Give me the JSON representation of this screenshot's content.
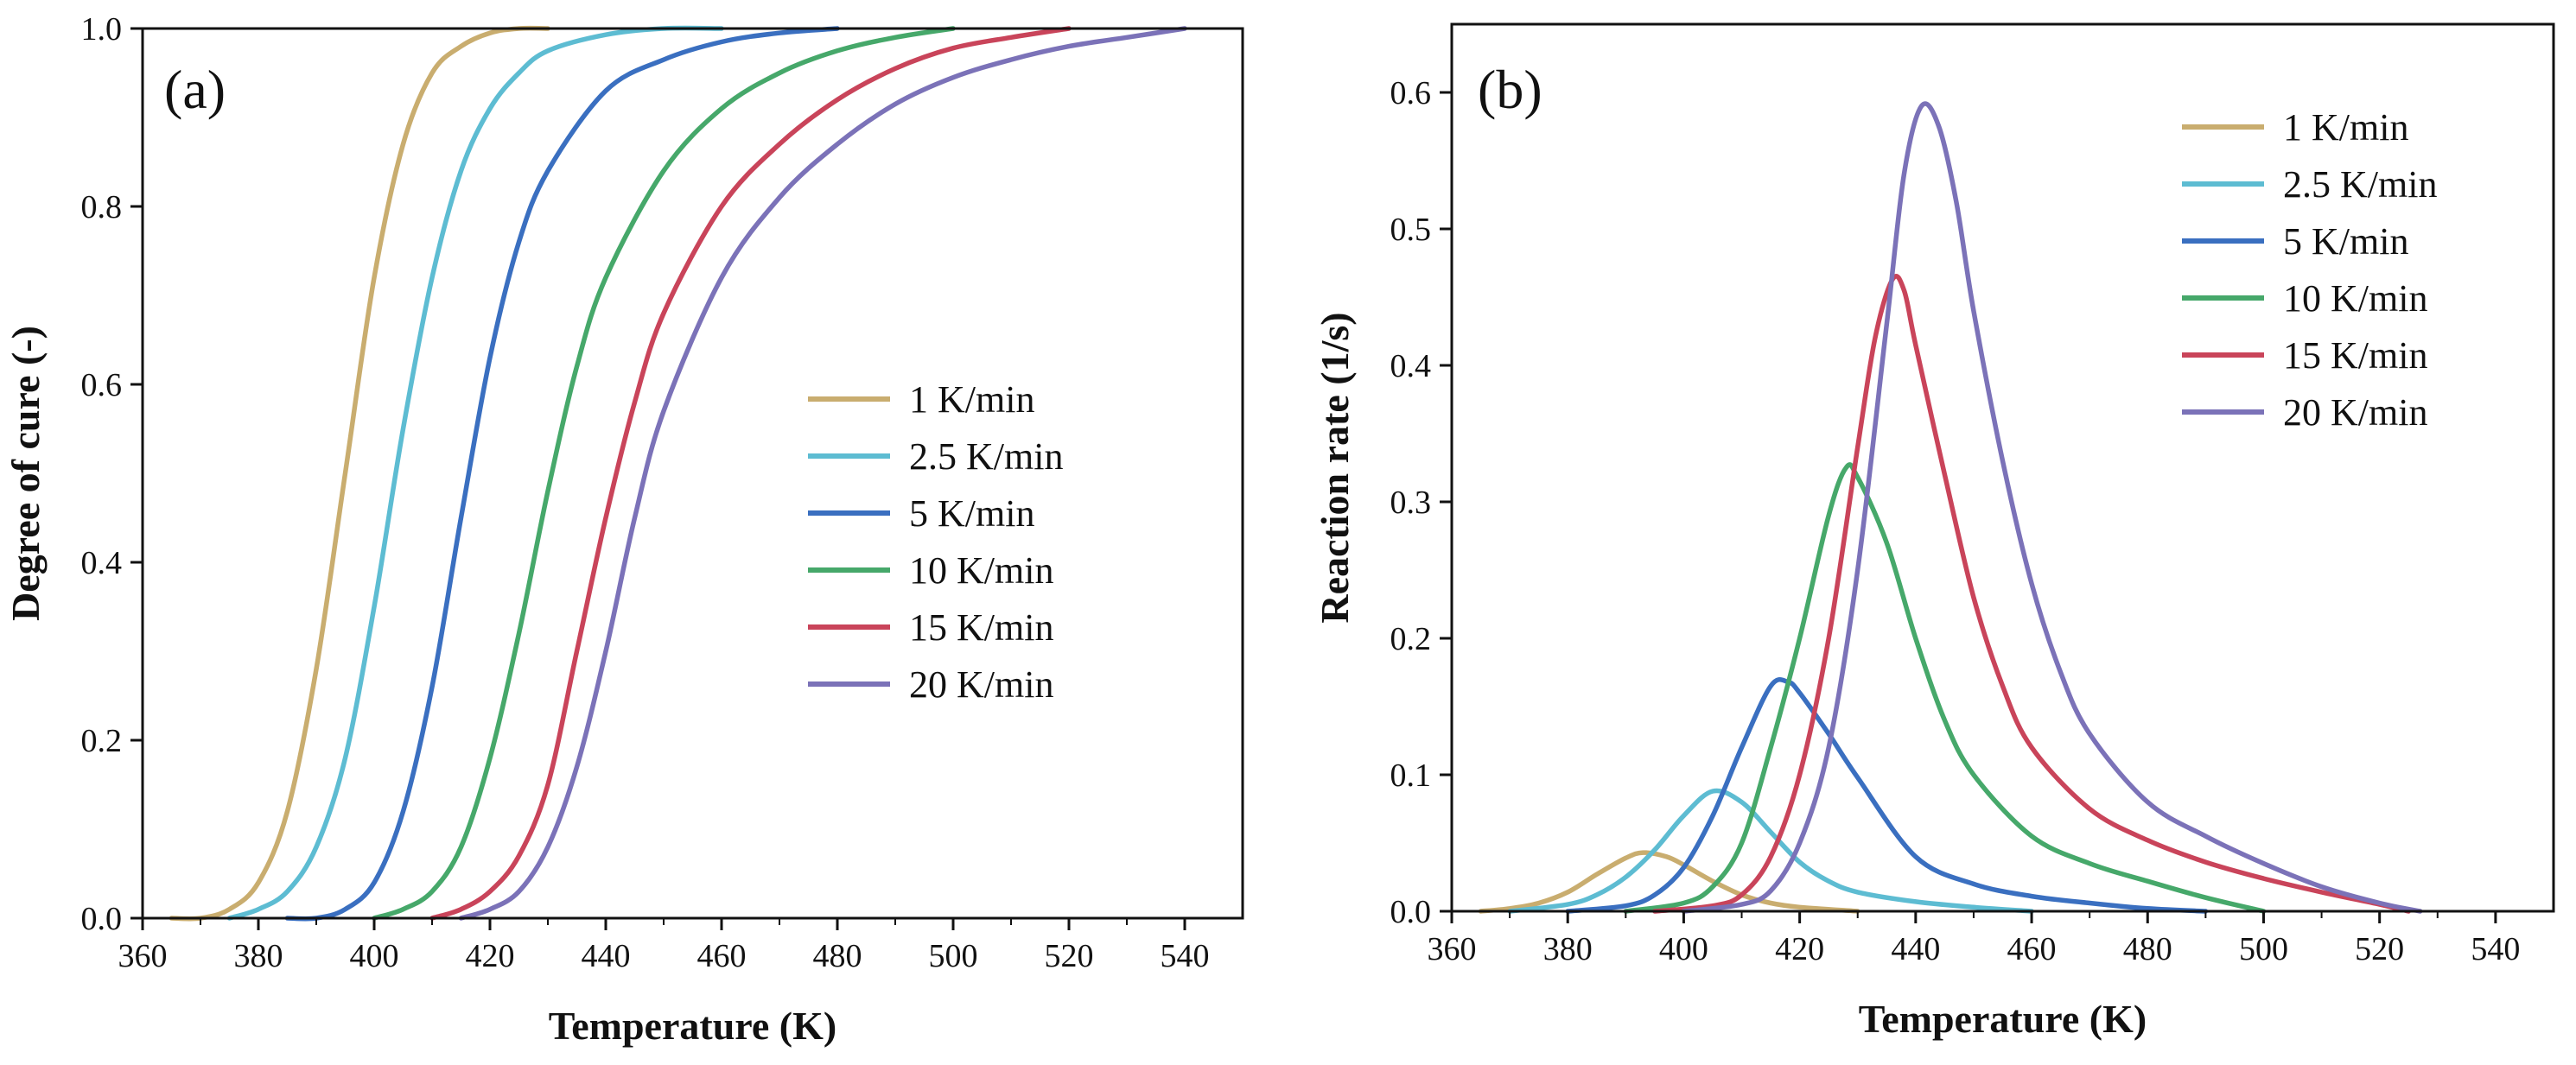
{
  "chart_data": [
    {
      "panel": "(a)",
      "type": "line",
      "xlabel": "Temperature (K)",
      "ylabel": "Degree of cure (-)",
      "xlim": [
        360,
        550
      ],
      "ylim": [
        0,
        1
      ],
      "xticks": [
        360,
        380,
        400,
        420,
        440,
        460,
        480,
        500,
        520,
        540
      ],
      "yticks": [
        0.0,
        0.2,
        0.4,
        0.6,
        0.8,
        1.0
      ],
      "ytick_labels": [
        "0.0",
        "0.2",
        "0.4",
        "0.6",
        "0.8",
        "1.0"
      ],
      "legend_position": "center-right",
      "series": [
        {
          "name": "1 K/min",
          "color": "#c9ad6f",
          "x": [
            365,
            370,
            375,
            380,
            385,
            390,
            395,
            400,
            405,
            410,
            415,
            420,
            425,
            430
          ],
          "y": [
            0.0,
            0.0,
            0.01,
            0.04,
            0.12,
            0.28,
            0.5,
            0.72,
            0.87,
            0.95,
            0.98,
            0.995,
            1.0,
            1.0
          ]
        },
        {
          "name": "2.5 K/min",
          "color": "#5dbcd2",
          "x": [
            375,
            380,
            385,
            390,
            395,
            400,
            405,
            410,
            415,
            420,
            425,
            430,
            440,
            450,
            460
          ],
          "y": [
            0.0,
            0.01,
            0.03,
            0.08,
            0.18,
            0.35,
            0.55,
            0.72,
            0.84,
            0.91,
            0.95,
            0.975,
            0.993,
            1.0,
            1.0
          ]
        },
        {
          "name": "5 K/min",
          "color": "#3a6fc0",
          "x": [
            385,
            390,
            395,
            400,
            405,
            410,
            415,
            420,
            425,
            430,
            440,
            450,
            460,
            470,
            480
          ],
          "y": [
            0.0,
            0.0,
            0.01,
            0.04,
            0.12,
            0.26,
            0.45,
            0.63,
            0.76,
            0.84,
            0.93,
            0.965,
            0.985,
            0.995,
            1.0
          ]
        },
        {
          "name": "10 K/min",
          "color": "#46a86a",
          "x": [
            400,
            405,
            410,
            415,
            420,
            425,
            430,
            435,
            440,
            450,
            460,
            470,
            480,
            490,
            500
          ],
          "y": [
            0.0,
            0.01,
            0.03,
            0.08,
            0.18,
            0.32,
            0.48,
            0.62,
            0.72,
            0.84,
            0.91,
            0.95,
            0.975,
            0.99,
            1.0
          ]
        },
        {
          "name": "15 K/min",
          "color": "#c9445a",
          "x": [
            410,
            415,
            420,
            425,
            430,
            435,
            440,
            445,
            450,
            460,
            470,
            480,
            490,
            500,
            510,
            520
          ],
          "y": [
            0.0,
            0.01,
            0.03,
            0.07,
            0.15,
            0.3,
            0.45,
            0.58,
            0.68,
            0.8,
            0.87,
            0.92,
            0.955,
            0.978,
            0.99,
            1.0
          ]
        },
        {
          "name": "20 K/min",
          "color": "#7b72b8",
          "x": [
            415,
            420,
            425,
            430,
            435,
            440,
            445,
            450,
            460,
            470,
            480,
            490,
            500,
            510,
            520,
            530,
            540
          ],
          "y": [
            0.0,
            0.01,
            0.03,
            0.08,
            0.17,
            0.3,
            0.45,
            0.57,
            0.72,
            0.81,
            0.87,
            0.915,
            0.945,
            0.965,
            0.98,
            0.99,
            1.0
          ]
        }
      ]
    },
    {
      "panel": "(b)",
      "type": "line",
      "xlabel": "Temperature (K)",
      "ylabel": "Reaction rate (1/s)",
      "xlim": [
        360,
        550
      ],
      "ylim": [
        0,
        0.65
      ],
      "xticks": [
        360,
        380,
        400,
        420,
        440,
        460,
        480,
        500,
        520,
        540
      ],
      "yticks": [
        0.0,
        0.1,
        0.2,
        0.3,
        0.4,
        0.5,
        0.6
      ],
      "ytick_labels": [
        "0.0",
        "0.1",
        "0.2",
        "0.3",
        "0.4",
        "0.5",
        "0.6"
      ],
      "legend_position": "top-right",
      "series": [
        {
          "name": "1 K/min",
          "color": "#c9ad6f",
          "x": [
            365,
            370,
            375,
            380,
            385,
            390,
            393,
            397,
            400,
            405,
            410,
            415,
            420,
            430
          ],
          "y": [
            0.0,
            0.002,
            0.006,
            0.014,
            0.027,
            0.039,
            0.043,
            0.04,
            0.034,
            0.022,
            0.012,
            0.006,
            0.003,
            0.0
          ]
        },
        {
          "name": "2.5 K/min",
          "color": "#5dbcd2",
          "x": [
            370,
            380,
            385,
            390,
            395,
            400,
            405,
            410,
            415,
            420,
            425,
            430,
            440,
            450,
            460
          ],
          "y": [
            0.0,
            0.005,
            0.012,
            0.025,
            0.045,
            0.07,
            0.088,
            0.08,
            0.058,
            0.036,
            0.022,
            0.014,
            0.007,
            0.003,
            0.0
          ]
        },
        {
          "name": "5 K/min",
          "color": "#3a6fc0",
          "x": [
            380,
            390,
            395,
            400,
            405,
            410,
            415,
            418,
            420,
            425,
            430,
            440,
            450,
            460,
            470,
            480,
            490
          ],
          "y": [
            0.0,
            0.004,
            0.012,
            0.032,
            0.07,
            0.12,
            0.165,
            0.168,
            0.16,
            0.13,
            0.098,
            0.04,
            0.02,
            0.011,
            0.006,
            0.002,
            0.0
          ]
        },
        {
          "name": "10 K/min",
          "color": "#46a86a",
          "x": [
            390,
            400,
            405,
            410,
            415,
            420,
            425,
            428,
            430,
            435,
            440,
            445,
            450,
            460,
            470,
            480,
            490,
            500
          ],
          "y": [
            0.0,
            0.006,
            0.018,
            0.05,
            0.12,
            0.2,
            0.29,
            0.325,
            0.318,
            0.27,
            0.2,
            0.14,
            0.1,
            0.055,
            0.035,
            0.022,
            0.01,
            0.0
          ]
        },
        {
          "name": "15 K/min",
          "color": "#c9445a",
          "x": [
            395,
            405,
            410,
            415,
            420,
            425,
            430,
            433,
            436,
            438,
            440,
            445,
            450,
            455,
            460,
            470,
            480,
            490,
            500,
            510,
            520,
            525
          ],
          "y": [
            0.0,
            0.004,
            0.012,
            0.04,
            0.1,
            0.2,
            0.34,
            0.42,
            0.463,
            0.455,
            0.415,
            0.32,
            0.23,
            0.165,
            0.12,
            0.075,
            0.052,
            0.036,
            0.024,
            0.014,
            0.005,
            0.0
          ]
        },
        {
          "name": "20 K/min",
          "color": "#7b72b8",
          "x": [
            400,
            410,
            415,
            420,
            425,
            430,
            435,
            438,
            441,
            444,
            447,
            450,
            455,
            460,
            465,
            470,
            480,
            490,
            500,
            510,
            520,
            527
          ],
          "y": [
            0.0,
            0.005,
            0.015,
            0.05,
            0.12,
            0.25,
            0.43,
            0.54,
            0.59,
            0.575,
            0.52,
            0.44,
            0.33,
            0.24,
            0.175,
            0.13,
            0.08,
            0.055,
            0.035,
            0.018,
            0.006,
            0.0
          ]
        }
      ]
    }
  ]
}
